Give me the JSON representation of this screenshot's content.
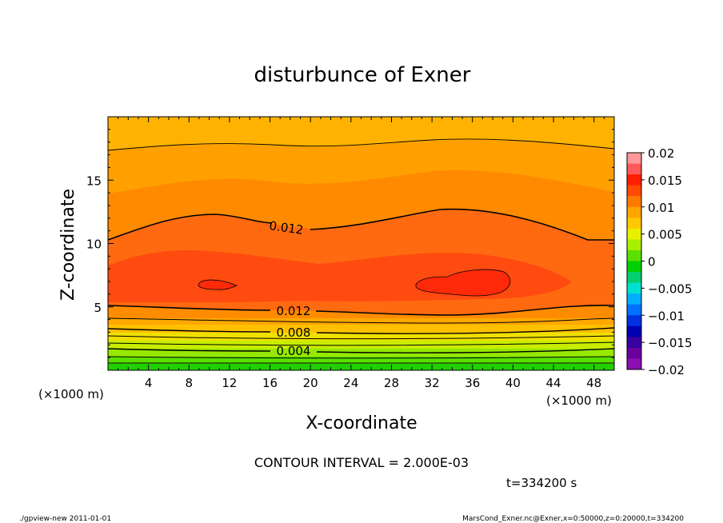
{
  "chart_data": {
    "type": "contour",
    "title": "disturbunce of Exner",
    "xlabel": "X-coordinate",
    "ylabel": "Z-coordinate",
    "x_unit_left": "(×1000 m)",
    "x_unit_right": "(×1000 m)",
    "xlim": [
      0,
      50
    ],
    "ylim": [
      0,
      20
    ],
    "x_ticks": [
      "4",
      "8",
      "12",
      "16",
      "20",
      "24",
      "28",
      "32",
      "36",
      "40",
      "44",
      "48"
    ],
    "y_ticks": [
      "5",
      "10",
      "15"
    ],
    "colorbar": {
      "range": [
        -0.02,
        0.02
      ],
      "labels": [
        "0.02",
        "0.015",
        "0.01",
        "0.005",
        "0",
        "−0.005",
        "−0.01",
        "−0.015",
        "−0.02"
      ],
      "colors": [
        "#ff9999",
        "#ff5a5a",
        "#ff1e00",
        "#ff4a00",
        "#ff7a00",
        "#ffa500",
        "#ffc800",
        "#e8f000",
        "#a8f000",
        "#5ae000",
        "#00d000",
        "#00d070",
        "#00e0d0",
        "#00b0ff",
        "#0070ff",
        "#0030e0",
        "#0000b0",
        "#3a00a0",
        "#6a00a0",
        "#8a10b0"
      ]
    },
    "contour_labels": [
      "0.012",
      "0.012",
      "0.008",
      "0.004"
    ],
    "annotation": "CONTOUR INTERVAL = 2.000E-03",
    "time": "t=334200 s"
  },
  "footer": {
    "left": "./gpview-new   2011-01-01",
    "right": "MarsCond_Exner.nc@Exner,x=0:50000,z=0:20000,t=334200"
  },
  "colors": {
    "band_top": "#ffb000",
    "band_upper": "#ff9a00",
    "band_mid": "#ff7a00",
    "band_core": "#ff5a1a",
    "band_max": "#ff2a0a"
  }
}
